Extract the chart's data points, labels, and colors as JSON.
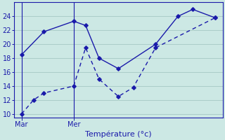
{
  "background_color": "#cce8e4",
  "grid_color": "#aaccc8",
  "line_color": "#1a1aaa",
  "xlabel": "Température (°c)",
  "ylim": [
    9.5,
    26.0
  ],
  "yticks": [
    10,
    12,
    14,
    16,
    18,
    20,
    22,
    24
  ],
  "xlim": [
    -0.5,
    13.5
  ],
  "x_tick_positions": [
    0.0,
    3.5
  ],
  "x_tick_labels": [
    "Mar",
    "Mer"
  ],
  "vline_positions": [
    0.0,
    3.5
  ],
  "line1_x": [
    0.0,
    1.5,
    3.5,
    4.3,
    5.2,
    6.5,
    9.0,
    10.5,
    11.5,
    13.0
  ],
  "line1_y": [
    18.5,
    21.8,
    23.3,
    22.7,
    18.0,
    16.5,
    20.0,
    24.0,
    25.0,
    23.8
  ],
  "line2_x": [
    0.0,
    0.8,
    1.5,
    3.5,
    4.3,
    5.2,
    6.5,
    7.5,
    9.0,
    13.0
  ],
  "line2_y": [
    10.0,
    12.0,
    13.0,
    14.0,
    19.5,
    15.0,
    12.5,
    13.8,
    19.5,
    23.8
  ],
  "tick_fontsize": 7,
  "label_fontsize": 8
}
